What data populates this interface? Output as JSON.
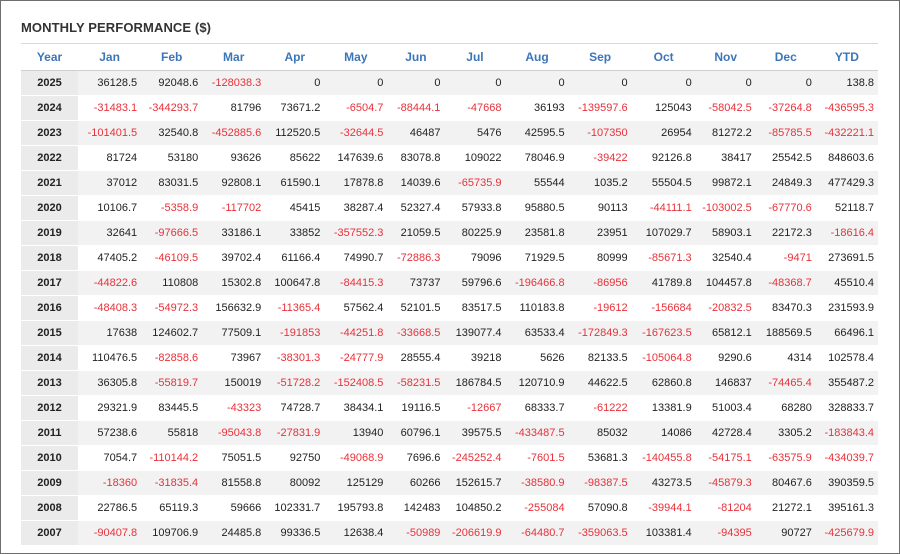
{
  "title": "MONTHLY PERFORMANCE ($)",
  "colors": {
    "header": "#3d76b8",
    "negative": "#e8313a",
    "positive": "#222222",
    "zebra": "#f2f2f2"
  },
  "columns": [
    "Year",
    "Jan",
    "Feb",
    "Mar",
    "Apr",
    "May",
    "Jun",
    "Jul",
    "Aug",
    "Sep",
    "Oct",
    "Nov",
    "Dec",
    "YTD"
  ],
  "rows": [
    [
      "2025",
      "36128.5",
      "92048.6",
      "-128038.3",
      "0",
      "0",
      "0",
      "0",
      "0",
      "0",
      "0",
      "0",
      "0",
      "138.8"
    ],
    [
      "2024",
      "-31483.1",
      "-344293.7",
      "81796",
      "73671.2",
      "-6504.7",
      "-88444.1",
      "-47668",
      "36193",
      "-139597.6",
      "125043",
      "-58042.5",
      "-37264.8",
      "-436595.3"
    ],
    [
      "2023",
      "-101401.5",
      "32540.8",
      "-452885.6",
      "112520.5",
      "-32644.5",
      "46487",
      "5476",
      "42595.5",
      "-107350",
      "26954",
      "81272.2",
      "-85785.5",
      "-432221.1"
    ],
    [
      "2022",
      "81724",
      "53180",
      "93626",
      "85622",
      "147639.6",
      "83078.8",
      "109022",
      "78046.9",
      "-39422",
      "92126.8",
      "38417",
      "25542.5",
      "848603.6"
    ],
    [
      "2021",
      "37012",
      "83031.5",
      "92808.1",
      "61590.1",
      "17878.8",
      "14039.6",
      "-65735.9",
      "55544",
      "1035.2",
      "55504.5",
      "99872.1",
      "24849.3",
      "477429.3"
    ],
    [
      "2020",
      "10106.7",
      "-5358.9",
      "-117702",
      "45415",
      "38287.4",
      "52327.4",
      "57933.8",
      "95880.5",
      "90113",
      "-44111.1",
      "-103002.5",
      "-67770.6",
      "52118.7"
    ],
    [
      "2019",
      "32641",
      "-97666.5",
      "33186.1",
      "33852",
      "-357552.3",
      "21059.5",
      "80225.9",
      "23581.8",
      "23951",
      "107029.7",
      "58903.1",
      "22172.3",
      "-18616.4"
    ],
    [
      "2018",
      "47405.2",
      "-46109.5",
      "39702.4",
      "61166.4",
      "74990.7",
      "-72886.3",
      "79096",
      "71929.5",
      "80999",
      "-85671.3",
      "32540.4",
      "-9471",
      "273691.5"
    ],
    [
      "2017",
      "-44822.6",
      "110808",
      "15302.8",
      "100647.8",
      "-84415.3",
      "73737",
      "59796.6",
      "-196466.8",
      "-86956",
      "41789.8",
      "104457.8",
      "-48368.7",
      "45510.4"
    ],
    [
      "2016",
      "-48408.3",
      "-54972.3",
      "156632.9",
      "-11365.4",
      "57562.4",
      "52101.5",
      "83517.5",
      "110183.8",
      "-19612",
      "-156684",
      "-20832.5",
      "83470.3",
      "231593.9"
    ],
    [
      "2015",
      "17638",
      "124602.7",
      "77509.1",
      "-191853",
      "-44251.8",
      "-33668.5",
      "139077.4",
      "63533.4",
      "-172849.3",
      "-167623.5",
      "65812.1",
      "188569.5",
      "66496.1"
    ],
    [
      "2014",
      "110476.5",
      "-82858.6",
      "73967",
      "-38301.3",
      "-24777.9",
      "28555.4",
      "39218",
      "5626",
      "82133.5",
      "-105064.8",
      "9290.6",
      "4314",
      "102578.4"
    ],
    [
      "2013",
      "36305.8",
      "-55819.7",
      "150019",
      "-51728.2",
      "-152408.5",
      "-58231.5",
      "186784.5",
      "120710.9",
      "44622.5",
      "62860.8",
      "146837",
      "-74465.4",
      "355487.2"
    ],
    [
      "2012",
      "29321.9",
      "83445.5",
      "-43323",
      "74728.7",
      "38434.1",
      "19116.5",
      "-12667",
      "68333.7",
      "-61222",
      "13381.9",
      "51003.4",
      "68280",
      "328833.7"
    ],
    [
      "2011",
      "57238.6",
      "55818",
      "-95043.8",
      "-27831.9",
      "13940",
      "60796.1",
      "39575.5",
      "-433487.5",
      "85032",
      "14086",
      "42728.4",
      "3305.2",
      "-183843.4"
    ],
    [
      "2010",
      "7054.7",
      "-110144.2",
      "75051.5",
      "92750",
      "-49068.9",
      "7696.6",
      "-245252.4",
      "-7601.5",
      "53681.3",
      "-140455.8",
      "-54175.1",
      "-63575.9",
      "-434039.7"
    ],
    [
      "2009",
      "-18360",
      "-31835.4",
      "81558.8",
      "80092",
      "125129",
      "60266",
      "152615.7",
      "-38580.9",
      "-98387.5",
      "43273.5",
      "-45879.3",
      "80467.6",
      "390359.5"
    ],
    [
      "2008",
      "22786.5",
      "65119.3",
      "59666",
      "102331.7",
      "195793.8",
      "142483",
      "104850.2",
      "-255084",
      "57090.8",
      "-39944.1",
      "-81204",
      "21272.1",
      "395161.3"
    ],
    [
      "2007",
      "-90407.8",
      "109706.9",
      "24485.8",
      "99336.5",
      "12638.4",
      "-50989",
      "-206619.9",
      "-64480.7",
      "-359063.5",
      "103381.4",
      "-94395",
      "90727",
      "-425679.9"
    ]
  ]
}
